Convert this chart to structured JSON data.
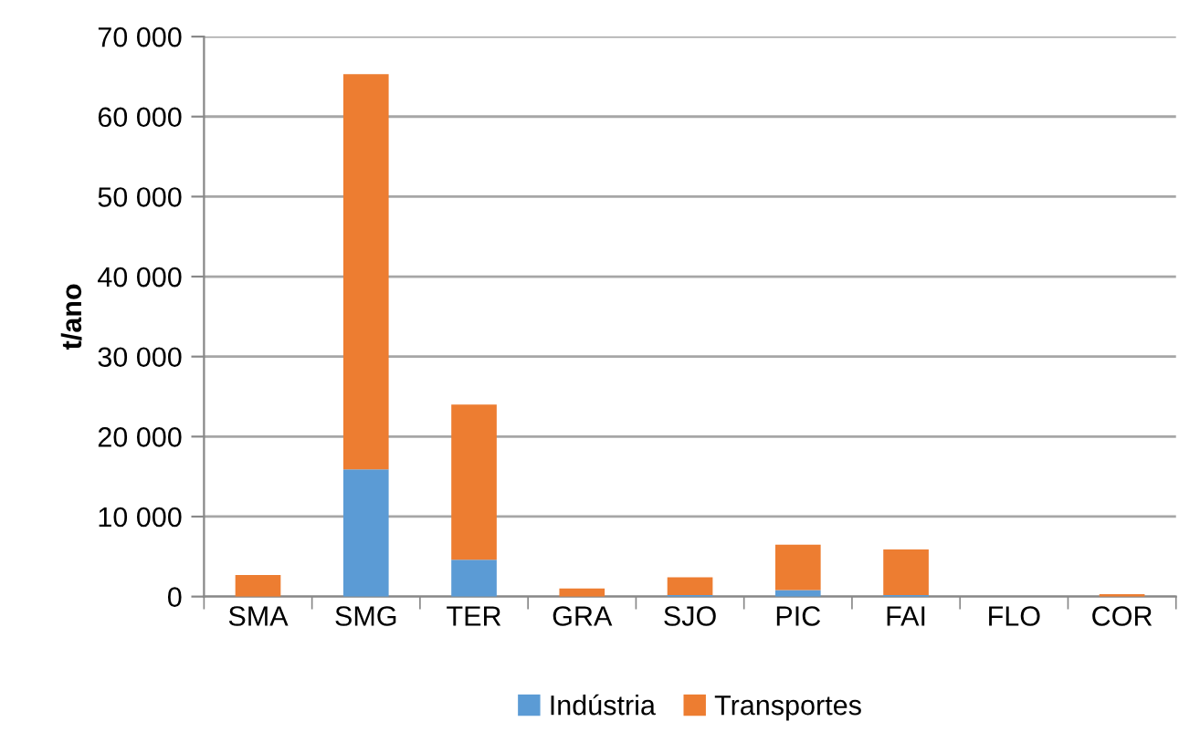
{
  "chart_data": {
    "type": "bar",
    "stacked": true,
    "ylabel": "t/ano",
    "categories": [
      "SMA",
      "SMG",
      "TER",
      "GRA",
      "SJO",
      "PIC",
      "FAI",
      "FLO",
      "COR"
    ],
    "series": [
      {
        "name": "Indústria",
        "color": "#5b9bd5",
        "values": [
          0,
          15900,
          4600,
          0,
          200,
          800,
          200,
          0,
          0
        ]
      },
      {
        "name": "Transportes",
        "color": "#ed7d31",
        "values": [
          2700,
          49400,
          19400,
          1000,
          2200,
          5700,
          5700,
          0,
          300
        ]
      }
    ],
    "ylim": [
      0,
      70000
    ],
    "yticks": [
      0,
      {
        "value": 10000,
        "label": "10 000"
      },
      {
        "value": 20000,
        "label": "20 000"
      },
      {
        "value": 30000,
        "label": "30 000"
      },
      {
        "value": 40000,
        "label": "40 000"
      },
      {
        "value": 50000,
        "label": "50 000"
      },
      {
        "value": 60000,
        "label": "60 000"
      },
      {
        "value": 70000,
        "label": "70 000"
      }
    ],
    "grid": "y",
    "legend": "bottom"
  }
}
